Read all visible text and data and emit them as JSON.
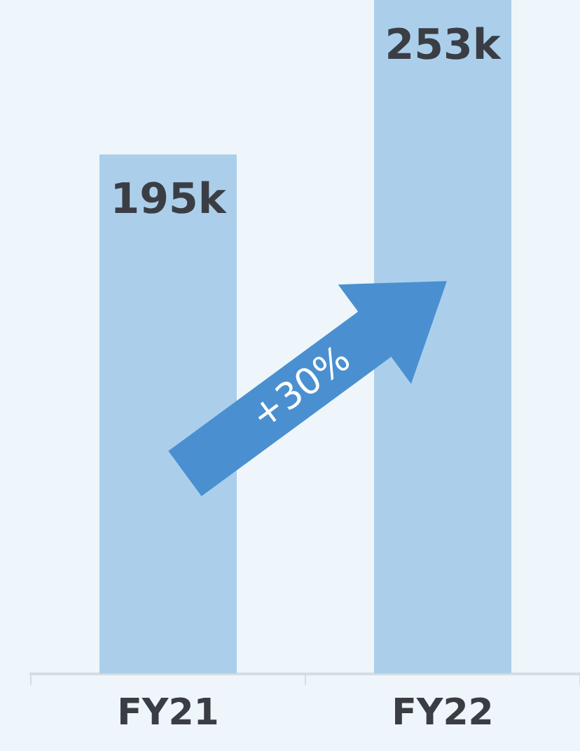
{
  "chart_data": {
    "type": "bar",
    "categories": [
      "FY21",
      "FY22"
    ],
    "values": [
      195,
      253
    ],
    "value_labels": [
      "195k",
      "253k"
    ],
    "color": "#abcfeb",
    "annotations": [
      "+30%"
    ]
  }
}
